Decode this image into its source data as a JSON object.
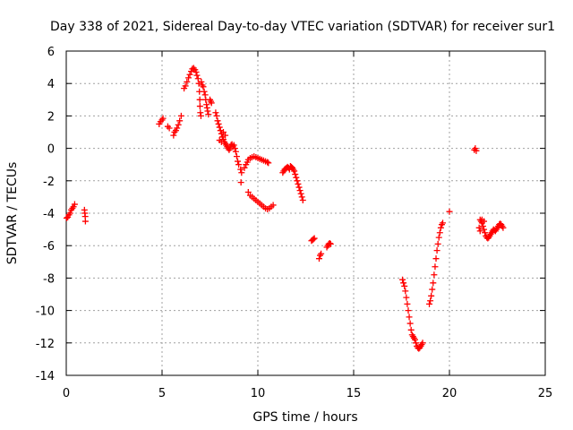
{
  "chart_data": {
    "type": "scatter",
    "title": "Day 338 of 2021, Sidereal Day-to-day VTEC variation (SDTVAR) for receiver sur1",
    "xlabel": "GPS time / hours",
    "ylabel": "SDTVAR / TECUs",
    "xlim": [
      0,
      25
    ],
    "ylim": [
      -14,
      6
    ],
    "x_ticks": [
      0,
      5,
      10,
      15,
      20,
      25
    ],
    "y_ticks": [
      -14,
      -12,
      -10,
      -8,
      -6,
      -4,
      -2,
      0,
      2,
      4,
      6
    ],
    "grid": true,
    "marker": "+",
    "color": "#ff0000",
    "series": [
      {
        "name": "SDTVAR",
        "points": [
          [
            0.02,
            -4.3
          ],
          [
            0.08,
            -4.25
          ],
          [
            0.14,
            -4.1
          ],
          [
            0.2,
            -4.0
          ],
          [
            0.26,
            -3.8
          ],
          [
            0.32,
            -3.7
          ],
          [
            0.38,
            -3.6
          ],
          [
            0.44,
            -3.45
          ],
          [
            0.95,
            -3.8
          ],
          [
            0.97,
            -4.0
          ],
          [
            0.99,
            -4.2
          ],
          [
            1.0,
            -4.5
          ],
          [
            4.85,
            1.5
          ],
          [
            4.92,
            1.65
          ],
          [
            5.0,
            1.75
          ],
          [
            5.05,
            1.85
          ],
          [
            5.3,
            1.35
          ],
          [
            5.38,
            1.25
          ],
          [
            5.6,
            0.8
          ],
          [
            5.65,
            1.0
          ],
          [
            5.72,
            1.1
          ],
          [
            5.78,
            1.25
          ],
          [
            5.85,
            1.45
          ],
          [
            5.92,
            1.7
          ],
          [
            6.0,
            2.0
          ],
          [
            6.15,
            3.7
          ],
          [
            6.22,
            3.85
          ],
          [
            6.3,
            4.1
          ],
          [
            6.38,
            4.35
          ],
          [
            6.45,
            4.55
          ],
          [
            6.52,
            4.75
          ],
          [
            6.58,
            4.9
          ],
          [
            6.65,
            4.95
          ],
          [
            6.72,
            4.85
          ],
          [
            6.78,
            4.7
          ],
          [
            6.82,
            4.5
          ],
          [
            6.88,
            4.3
          ],
          [
            6.92,
            4.0
          ],
          [
            6.95,
            3.5
          ],
          [
            6.97,
            3.0
          ],
          [
            6.98,
            2.6
          ],
          [
            7.0,
            2.2
          ],
          [
            7.03,
            2.0
          ],
          [
            7.05,
            4.1
          ],
          [
            7.1,
            3.9
          ],
          [
            7.15,
            3.8
          ],
          [
            7.2,
            3.5
          ],
          [
            7.25,
            3.3
          ],
          [
            7.28,
            3.0
          ],
          [
            7.32,
            2.7
          ],
          [
            7.35,
            2.5
          ],
          [
            7.38,
            2.3
          ],
          [
            7.42,
            2.1
          ],
          [
            7.5,
            3.0
          ],
          [
            7.55,
            2.9
          ],
          [
            7.58,
            2.8
          ],
          [
            7.8,
            2.2
          ],
          [
            7.85,
            2.0
          ],
          [
            7.9,
            1.7
          ],
          [
            7.95,
            1.5
          ],
          [
            8.0,
            1.3
          ],
          [
            8.05,
            1.1
          ],
          [
            8.1,
            0.9
          ],
          [
            8.15,
            0.7
          ],
          [
            8.2,
            0.55
          ],
          [
            8.25,
            0.4
          ],
          [
            8.3,
            0.3
          ],
          [
            8.35,
            0.2
          ],
          [
            8.4,
            0.1
          ],
          [
            8.45,
            0.0
          ],
          [
            8.5,
            -0.1
          ],
          [
            8.0,
            0.5
          ],
          [
            8.1,
            0.4
          ],
          [
            8.2,
            1.0
          ],
          [
            8.3,
            0.8
          ],
          [
            8.55,
            0.0
          ],
          [
            8.6,
            0.2
          ],
          [
            8.65,
            0.25
          ],
          [
            8.7,
            0.1
          ],
          [
            8.75,
            0.2
          ],
          [
            8.8,
            0.0
          ],
          [
            8.85,
            -0.2
          ],
          [
            8.9,
            -0.5
          ],
          [
            8.95,
            -0.8
          ],
          [
            9.0,
            -1.0
          ],
          [
            9.1,
            -1.3
          ],
          [
            9.15,
            -1.5
          ],
          [
            9.12,
            -2.1
          ],
          [
            9.3,
            -1.2
          ],
          [
            9.38,
            -1.0
          ],
          [
            9.45,
            -0.85
          ],
          [
            9.5,
            -0.7
          ],
          [
            9.6,
            -0.6
          ],
          [
            9.7,
            -0.55
          ],
          [
            9.8,
            -0.5
          ],
          [
            9.9,
            -0.55
          ],
          [
            10.0,
            -0.6
          ],
          [
            10.1,
            -0.65
          ],
          [
            10.2,
            -0.7
          ],
          [
            10.3,
            -0.75
          ],
          [
            10.4,
            -0.8
          ],
          [
            10.5,
            -0.85
          ],
          [
            10.55,
            -0.9
          ],
          [
            9.5,
            -2.7
          ],
          [
            9.6,
            -2.9
          ],
          [
            9.7,
            -3.0
          ],
          [
            9.8,
            -3.1
          ],
          [
            9.9,
            -3.2
          ],
          [
            10.0,
            -3.3
          ],
          [
            10.1,
            -3.4
          ],
          [
            10.2,
            -3.5
          ],
          [
            10.3,
            -3.6
          ],
          [
            10.4,
            -3.7
          ],
          [
            10.5,
            -3.75
          ],
          [
            10.6,
            -3.7
          ],
          [
            10.7,
            -3.6
          ],
          [
            10.8,
            -3.5
          ],
          [
            11.3,
            -1.5
          ],
          [
            11.35,
            -1.4
          ],
          [
            11.4,
            -1.3
          ],
          [
            11.45,
            -1.25
          ],
          [
            11.5,
            -1.2
          ],
          [
            11.55,
            -1.15
          ],
          [
            11.6,
            -1.2
          ],
          [
            11.65,
            -1.3
          ],
          [
            11.7,
            -1.1
          ],
          [
            11.75,
            -1.15
          ],
          [
            11.8,
            -1.2
          ],
          [
            11.85,
            -1.3
          ],
          [
            11.9,
            -1.4
          ],
          [
            11.95,
            -1.6
          ],
          [
            12.0,
            -1.8
          ],
          [
            12.05,
            -2.0
          ],
          [
            12.1,
            -2.2
          ],
          [
            12.15,
            -2.4
          ],
          [
            12.2,
            -2.6
          ],
          [
            12.25,
            -2.8
          ],
          [
            12.3,
            -3.0
          ],
          [
            12.35,
            -3.2
          ],
          [
            12.8,
            -5.7
          ],
          [
            12.85,
            -5.65
          ],
          [
            12.9,
            -5.6
          ],
          [
            12.95,
            -5.55
          ],
          [
            13.2,
            -6.8
          ],
          [
            13.25,
            -6.6
          ],
          [
            13.3,
            -6.5
          ],
          [
            13.6,
            -6.1
          ],
          [
            13.65,
            -6.0
          ],
          [
            13.7,
            -5.9
          ],
          [
            13.75,
            -5.85
          ],
          [
            13.8,
            -5.9
          ],
          [
            17.55,
            -8.1
          ],
          [
            17.6,
            -8.3
          ],
          [
            17.65,
            -8.5
          ],
          [
            17.7,
            -8.8
          ],
          [
            17.75,
            -9.2
          ],
          [
            17.8,
            -9.6
          ],
          [
            17.85,
            -10.0
          ],
          [
            17.9,
            -10.4
          ],
          [
            17.95,
            -10.8
          ],
          [
            18.0,
            -11.2
          ],
          [
            18.05,
            -11.5
          ],
          [
            18.1,
            -11.6
          ],
          [
            18.15,
            -11.7
          ],
          [
            18.2,
            -11.8
          ],
          [
            18.25,
            -12.0
          ],
          [
            18.3,
            -12.2
          ],
          [
            18.35,
            -12.3
          ],
          [
            18.4,
            -12.35
          ],
          [
            18.45,
            -12.3
          ],
          [
            18.5,
            -12.2
          ],
          [
            18.55,
            -12.1
          ],
          [
            18.6,
            -12.0
          ],
          [
            18.95,
            -9.6
          ],
          [
            19.0,
            -9.4
          ],
          [
            19.05,
            -9.1
          ],
          [
            19.1,
            -8.7
          ],
          [
            19.15,
            -8.3
          ],
          [
            19.2,
            -7.8
          ],
          [
            19.25,
            -7.3
          ],
          [
            19.3,
            -6.8
          ],
          [
            19.35,
            -6.3
          ],
          [
            19.4,
            -5.9
          ],
          [
            19.45,
            -5.5
          ],
          [
            19.5,
            -5.2
          ],
          [
            19.55,
            -4.9
          ],
          [
            19.6,
            -4.7
          ],
          [
            19.65,
            -4.6
          ],
          [
            20.0,
            -3.9
          ],
          [
            21.3,
            -0.1
          ],
          [
            21.35,
            0.0
          ],
          [
            21.4,
            -0.15
          ],
          [
            21.6,
            -4.4
          ],
          [
            21.65,
            -4.5
          ],
          [
            21.7,
            -4.6
          ],
          [
            21.75,
            -4.8
          ],
          [
            21.8,
            -5.0
          ],
          [
            21.85,
            -5.2
          ],
          [
            21.9,
            -5.4
          ],
          [
            21.95,
            -5.5
          ],
          [
            22.0,
            -5.55
          ],
          [
            22.05,
            -5.5
          ],
          [
            22.1,
            -5.4
          ],
          [
            22.15,
            -5.3
          ],
          [
            22.2,
            -5.2
          ],
          [
            22.25,
            -5.1
          ],
          [
            22.3,
            -5.0
          ],
          [
            22.35,
            -5.05
          ],
          [
            22.4,
            -5.1
          ],
          [
            22.45,
            -5.0
          ],
          [
            22.5,
            -4.9
          ],
          [
            22.55,
            -4.8
          ],
          [
            22.6,
            -4.7
          ],
          [
            22.65,
            -4.65
          ],
          [
            22.7,
            -4.7
          ],
          [
            22.75,
            -4.8
          ],
          [
            22.8,
            -4.9
          ],
          [
            21.55,
            -4.9
          ],
          [
            21.6,
            -5.1
          ],
          [
            21.7,
            -4.4
          ],
          [
            21.8,
            -4.5
          ]
        ]
      }
    ]
  }
}
